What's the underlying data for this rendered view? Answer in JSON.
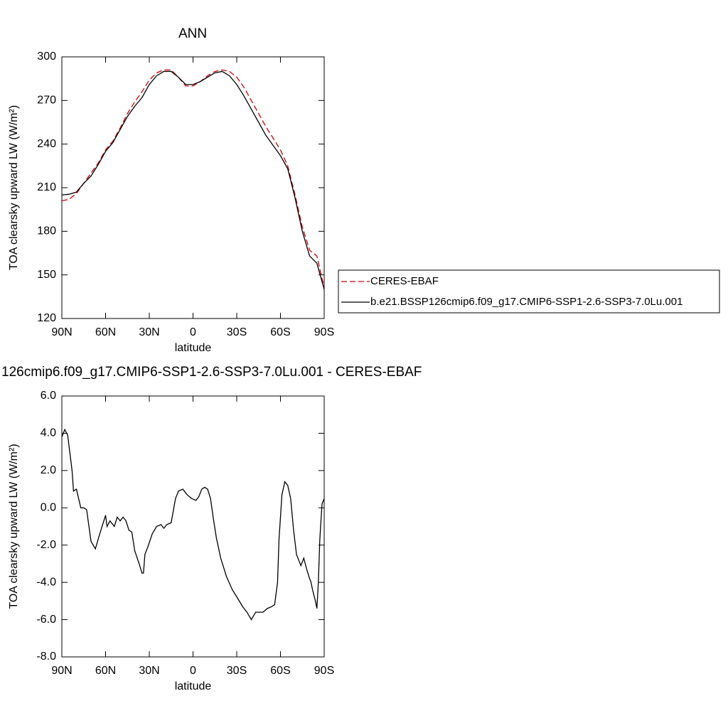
{
  "chart_data": [
    {
      "type": "line",
      "title": "ANN",
      "xlabel": "latitude",
      "ylabel": "TOA clearsky upward LW (W/m²)",
      "x": [
        90,
        85,
        80,
        75,
        70,
        65,
        60,
        55,
        50,
        45,
        40,
        35,
        30,
        25,
        20,
        15,
        10,
        5,
        0,
        -5,
        -10,
        -15,
        -20,
        -25,
        -30,
        -35,
        -40,
        -45,
        -50,
        -55,
        -60,
        -65,
        -70,
        -75,
        -80,
        -85,
        -90
      ],
      "series": [
        {
          "name": "CERES-EBAF",
          "color": "#cc0000",
          "dash": "dashed",
          "values": [
            201,
            202,
            206,
            213,
            220,
            227,
            236,
            242,
            251,
            261,
            269,
            276,
            284,
            289,
            291,
            291,
            286,
            280,
            280,
            283,
            287,
            290,
            291,
            290,
            286,
            279,
            270,
            261,
            252,
            244,
            236,
            225,
            205,
            183,
            167,
            163,
            141
          ]
        },
        {
          "name": "b.e21.BSSP126cmip6.f09_g17.CMIP6-SSP1-2.6-SSP3-7.0Lu.001",
          "color": "#000000",
          "dash": "solid",
          "values": [
            205,
            205.5,
            207,
            213,
            218,
            226,
            235,
            241,
            250,
            259,
            266,
            272,
            281,
            287,
            290,
            290,
            286,
            281,
            281,
            283,
            286,
            289,
            290,
            287,
            281,
            273,
            264,
            255,
            246,
            239,
            232,
            223,
            203,
            180,
            163,
            158,
            140
          ]
        }
      ],
      "xlim": [
        90,
        -90
      ],
      "xticks": [
        {
          "value": 90,
          "label": "90N"
        },
        {
          "value": 60,
          "label": "60N"
        },
        {
          "value": 30,
          "label": "30N"
        },
        0,
        {
          "value": -30,
          "label": "30S"
        },
        {
          "value": -60,
          "label": "60S"
        },
        {
          "value": -90,
          "label": "90S"
        }
      ],
      "ylim": [
        120,
        300
      ],
      "yticks": [
        120,
        150,
        180,
        210,
        240,
        270,
        300
      ],
      "legend": "right"
    },
    {
      "type": "line",
      "title": "126cmip6.f09_g17.CMIP6-SSP1-2.6-SSP3-7.0Lu.001 - CERES-EBAF",
      "xlabel": "latitude",
      "ylabel": "TOA clearsky upward LW (W/m²)",
      "x": [
        90,
        88,
        86,
        83,
        82,
        80,
        77,
        75,
        73,
        70,
        67,
        64,
        60,
        59,
        57,
        54,
        52,
        50,
        48,
        46,
        44,
        42,
        40,
        37,
        35,
        34,
        33,
        31,
        28,
        25,
        22,
        20,
        18,
        15,
        12,
        10,
        7,
        4,
        1,
        -2,
        -4,
        -6,
        -8,
        -10,
        -12,
        -14,
        -16,
        -19,
        -23,
        -27,
        -31,
        -34,
        -37,
        -40,
        -43,
        -45,
        -48,
        -51,
        -54,
        -56,
        -58,
        -59,
        -61,
        -63,
        -65,
        -67,
        -69,
        -71,
        -73,
        -74,
        -76,
        -78,
        -80,
        -81,
        -82,
        -84,
        -85,
        -86,
        -87,
        -88.5,
        -90
      ],
      "color": "#000000",
      "values": [
        3.8,
        4.2,
        3.9,
        2.0,
        0.9,
        1.0,
        0.0,
        0.0,
        -0.1,
        -1.8,
        -2.2,
        -1.4,
        -0.4,
        -1.0,
        -0.7,
        -1.0,
        -0.5,
        -0.7,
        -0.5,
        -0.7,
        -1.2,
        -1.3,
        -2.3,
        -3.0,
        -3.5,
        -3.5,
        -2.5,
        -2.1,
        -1.4,
        -1.0,
        -0.9,
        -1.1,
        -0.9,
        -0.8,
        0.5,
        0.9,
        1.0,
        0.7,
        0.5,
        0.4,
        0.6,
        1.0,
        1.1,
        1.0,
        0.5,
        -0.6,
        -1.6,
        -2.7,
        -3.7,
        -4.4,
        -4.9,
        -5.3,
        -5.6,
        -6.0,
        -5.6,
        -5.6,
        -5.6,
        -5.4,
        -5.3,
        -5.2,
        -4.0,
        -1.7,
        0.7,
        1.4,
        1.2,
        0.5,
        -1.2,
        -2.5,
        -2.9,
        -3.1,
        -2.7,
        -3.3,
        -3.8,
        -4.0,
        -4.4,
        -5.0,
        -5.4,
        -4.0,
        -1.7,
        0.2,
        0.5
      ],
      "xlim": [
        90,
        -90
      ],
      "xticks": [
        {
          "value": 90,
          "label": "90N"
        },
        {
          "value": 60,
          "label": "60N"
        },
        {
          "value": 30,
          "label": "30N"
        },
        0,
        {
          "value": -30,
          "label": "30S"
        },
        {
          "value": -60,
          "label": "60S"
        },
        {
          "value": -90,
          "label": "90S"
        }
      ],
      "ylim": [
        -8,
        6
      ],
      "yticks": [
        {
          "value": -8,
          "label": "-8.0"
        },
        {
          "value": -6,
          "label": "-6.0"
        },
        {
          "value": -4,
          "label": "-4.0"
        },
        {
          "value": -2,
          "label": "-2.0"
        },
        {
          "value": 0,
          "label": "0.0"
        },
        {
          "value": 2,
          "label": "2.0"
        },
        {
          "value": 4,
          "label": "4.0"
        },
        {
          "value": 6,
          "label": "6.0"
        }
      ]
    }
  ]
}
